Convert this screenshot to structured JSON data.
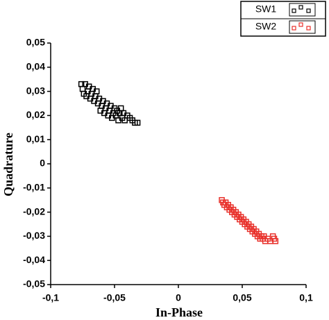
{
  "chart_data": {
    "type": "scatter",
    "x_label": "In-Phase",
    "y_label": "Quadrature",
    "xlim": [
      -0.1,
      0.1
    ],
    "ylim": [
      -0.05,
      0.05
    ],
    "xticks": [
      {
        "value": -0.1,
        "label": "-0,1"
      },
      {
        "value": -0.05,
        "label": "-0,05"
      },
      0,
      {
        "value": 0.05,
        "label": "0,05"
      },
      {
        "value": 0.1,
        "label": "0,1"
      }
    ],
    "yticks": [
      {
        "value": 0.05,
        "label": "0,05"
      },
      {
        "value": 0.04,
        "label": "0,04"
      },
      {
        "value": 0.03,
        "label": "0,03"
      },
      {
        "value": 0.02,
        "label": "0,02"
      },
      {
        "value": 0.01,
        "label": "0,01"
      },
      0,
      {
        "value": -0.01,
        "label": "-0,01"
      },
      {
        "value": -0.02,
        "label": "-0,02"
      },
      {
        "value": -0.03,
        "label": "-0,03"
      },
      {
        "value": -0.04,
        "label": "-0,04"
      },
      {
        "value": -0.05,
        "label": "-0,05"
      }
    ],
    "legend": "upper right",
    "series": [
      {
        "name": "SW1",
        "color": "#000000",
        "x": [
          -0.076,
          -0.075,
          -0.074,
          -0.073,
          -0.072,
          -0.071,
          -0.07,
          -0.069,
          -0.068,
          -0.067,
          -0.066,
          -0.065,
          -0.064,
          -0.063,
          -0.062,
          -0.061,
          -0.06,
          -0.059,
          -0.058,
          -0.057,
          -0.056,
          -0.055,
          -0.054,
          -0.053,
          -0.052,
          -0.051,
          -0.05,
          -0.049,
          -0.048,
          -0.047,
          -0.046,
          -0.045,
          -0.044,
          -0.043,
          -0.042,
          -0.04,
          -0.038,
          -0.036,
          -0.034,
          -0.032
        ],
        "values": [
          0.033,
          0.031,
          0.029,
          0.033,
          0.028,
          0.03,
          0.032,
          0.027,
          0.029,
          0.031,
          0.026,
          0.028,
          0.03,
          0.025,
          0.027,
          0.022,
          0.024,
          0.026,
          0.021,
          0.023,
          0.025,
          0.02,
          0.022,
          0.024,
          0.019,
          0.021,
          0.023,
          0.02,
          0.022,
          0.018,
          0.021,
          0.023,
          0.019,
          0.021,
          0.018,
          0.02,
          0.019,
          0.018,
          0.017,
          0.017
        ]
      },
      {
        "name": "SW2",
        "color": "#e8302a",
        "x": [
          0.034,
          0.035,
          0.036,
          0.037,
          0.038,
          0.039,
          0.04,
          0.041,
          0.042,
          0.043,
          0.044,
          0.045,
          0.046,
          0.047,
          0.048,
          0.049,
          0.05,
          0.051,
          0.052,
          0.053,
          0.054,
          0.055,
          0.056,
          0.057,
          0.058,
          0.059,
          0.06,
          0.061,
          0.062,
          0.063,
          0.064,
          0.065,
          0.066,
          0.067,
          0.068,
          0.07,
          0.072,
          0.074,
          0.075,
          0.076
        ],
        "values": [
          -0.015,
          -0.016,
          -0.017,
          -0.016,
          -0.018,
          -0.017,
          -0.019,
          -0.018,
          -0.02,
          -0.019,
          -0.021,
          -0.02,
          -0.022,
          -0.021,
          -0.023,
          -0.022,
          -0.024,
          -0.023,
          -0.025,
          -0.024,
          -0.026,
          -0.025,
          -0.027,
          -0.026,
          -0.028,
          -0.027,
          -0.029,
          -0.028,
          -0.03,
          -0.029,
          -0.031,
          -0.03,
          -0.031,
          -0.03,
          -0.032,
          -0.031,
          -0.032,
          -0.03,
          -0.031,
          -0.032
        ]
      }
    ]
  }
}
